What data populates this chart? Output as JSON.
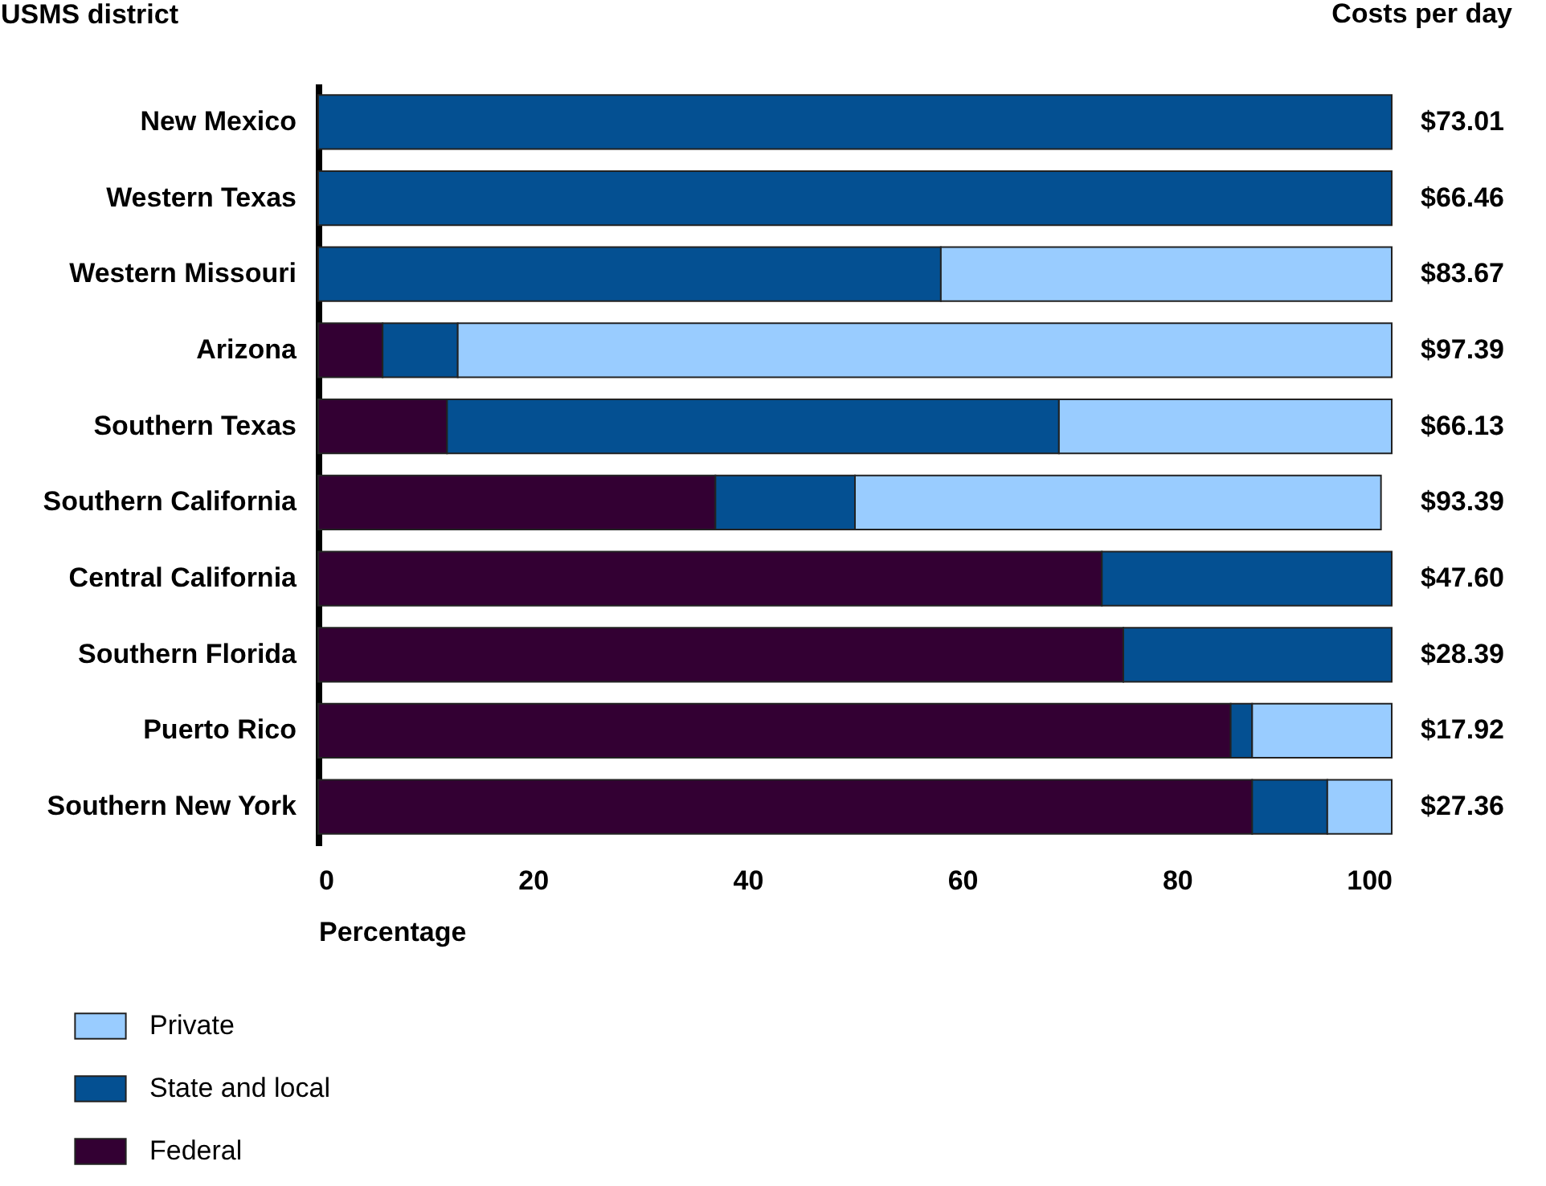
{
  "chart_data": {
    "type": "bar",
    "orientation": "horizontal",
    "stacked": true,
    "ylabel": "USMS district",
    "xlabel": "Percentage",
    "categories": [
      "New Mexico",
      "Western Texas",
      "Western Missouri",
      "Arizona",
      "Southern Texas",
      "Southern California",
      "Central California",
      "Southern Florida",
      "Puerto Rico",
      "Southern New York"
    ],
    "series": [
      {
        "name": "Federal",
        "color": "#330033",
        "values": [
          null,
          null,
          null,
          6,
          12,
          37,
          73,
          75,
          85,
          87
        ]
      },
      {
        "name": "State and local",
        "color": "#045092",
        "values": [
          100,
          100,
          58,
          7,
          57,
          13,
          27,
          25,
          2,
          7
        ]
      },
      {
        "name": "Private",
        "color": "#99ccff",
        "values": [
          null,
          null,
          42,
          87,
          31,
          49,
          null,
          null,
          13,
          6
        ]
      }
    ],
    "xlim": [
      0,
      100
    ],
    "xticks": [
      0,
      20,
      40,
      60,
      80,
      100
    ],
    "grid": false,
    "legend": "bottom left",
    "annotations": [
      "Costs per day",
      "$73.01",
      "$66.46",
      "$83.67",
      "$97.39",
      "$66.13",
      "$93.39",
      "$47.60",
      "$28.39",
      "$17.92",
      "$27.36"
    ]
  }
}
